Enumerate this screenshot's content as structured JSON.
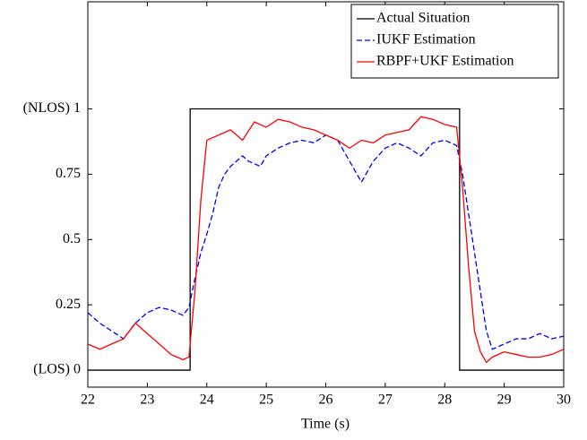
{
  "chart_data": {
    "type": "line",
    "xlabel": "Time (s)",
    "xlim": [
      22,
      30
    ],
    "xticks": [
      22,
      23,
      24,
      25,
      26,
      27,
      28,
      29,
      30
    ],
    "ylim": [
      -0.065,
      1.41
    ],
    "yticks": [
      {
        "value": 0,
        "label": "(LOS) 0"
      },
      0.25,
      0.5,
      0.75,
      {
        "value": 1,
        "label": "(NLOS) 1"
      }
    ],
    "legend": "northeast",
    "series": [
      {
        "name": "Actual Situation",
        "color": "#000000",
        "style": "solid",
        "x": [
          22,
          23.72,
          23.72,
          28.25,
          28.25,
          30
        ],
        "values": [
          0,
          0,
          1,
          1,
          0,
          0
        ]
      },
      {
        "name": "IUKF Estimation",
        "color": "#0000ff",
        "style": "dashed",
        "x": [
          22,
          22.2,
          22.4,
          22.6,
          22.8,
          23.0,
          23.2,
          23.4,
          23.6,
          23.7,
          23.8,
          23.9,
          24.0,
          24.1,
          24.2,
          24.3,
          24.4,
          24.5,
          24.6,
          24.7,
          24.8,
          24.9,
          25.0,
          25.2,
          25.4,
          25.6,
          25.8,
          26.0,
          26.2,
          26.4,
          26.6,
          26.8,
          27.0,
          27.2,
          27.4,
          27.6,
          27.8,
          28.0,
          28.2,
          28.3,
          28.4,
          28.5,
          28.6,
          28.7,
          28.8,
          29.0,
          29.2,
          29.4,
          29.6,
          29.8,
          30
        ],
        "values": [
          0.22,
          0.18,
          0.15,
          0.12,
          0.18,
          0.22,
          0.24,
          0.23,
          0.21,
          0.24,
          0.35,
          0.45,
          0.52,
          0.6,
          0.7,
          0.75,
          0.78,
          0.8,
          0.82,
          0.8,
          0.79,
          0.78,
          0.82,
          0.85,
          0.87,
          0.88,
          0.87,
          0.9,
          0.88,
          0.8,
          0.72,
          0.8,
          0.85,
          0.87,
          0.85,
          0.82,
          0.87,
          0.88,
          0.86,
          0.75,
          0.6,
          0.45,
          0.3,
          0.15,
          0.08,
          0.1,
          0.12,
          0.12,
          0.14,
          0.12,
          0.13
        ]
      },
      {
        "name": "RBPF+UKF Estimation",
        "color": "#ff0000",
        "style": "solid",
        "x": [
          22,
          22.2,
          22.4,
          22.6,
          22.8,
          23.0,
          23.2,
          23.4,
          23.6,
          23.7,
          23.8,
          23.9,
          24.0,
          24.2,
          24.4,
          24.6,
          24.8,
          25.0,
          25.2,
          25.4,
          25.6,
          25.8,
          26.0,
          26.2,
          26.4,
          26.6,
          26.8,
          27.0,
          27.2,
          27.4,
          27.6,
          27.8,
          28.0,
          28.2,
          28.3,
          28.4,
          28.5,
          28.6,
          28.7,
          28.8,
          29.0,
          29.2,
          29.4,
          29.6,
          29.8,
          30
        ],
        "values": [
          0.1,
          0.08,
          0.1,
          0.12,
          0.18,
          0.14,
          0.1,
          0.06,
          0.04,
          0.05,
          0.3,
          0.65,
          0.88,
          0.9,
          0.92,
          0.88,
          0.95,
          0.93,
          0.96,
          0.95,
          0.93,
          0.92,
          0.9,
          0.88,
          0.85,
          0.88,
          0.87,
          0.9,
          0.91,
          0.92,
          0.97,
          0.96,
          0.94,
          0.93,
          0.7,
          0.4,
          0.15,
          0.07,
          0.03,
          0.05,
          0.07,
          0.06,
          0.05,
          0.05,
          0.06,
          0.08
        ]
      }
    ]
  }
}
